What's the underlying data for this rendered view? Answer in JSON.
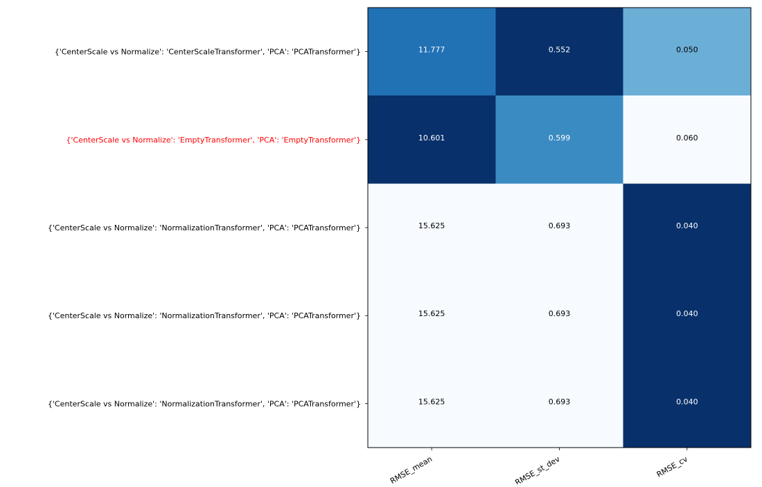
{
  "chart_data": {
    "type": "heatmap",
    "colormap": "Blues",
    "color_scaling": "per-column",
    "columns": [
      "RMSE_mean",
      "RMSE_st_dev",
      "RMSE_cv"
    ],
    "rows": [
      {
        "label": "{'CenterScale vs Normalize': 'CenterScaleTransformer', 'PCA': 'PCATransformer'}",
        "highlight": false
      },
      {
        "label": "{'CenterScale vs Normalize': 'EmptyTransformer', 'PCA': 'EmptyTransformer'}",
        "highlight": true
      },
      {
        "label": "{'CenterScale vs Normalize': 'NormalizationTransformer', 'PCA': 'PCATransformer'}",
        "highlight": false
      },
      {
        "label": "{'CenterScale vs Normalize': 'NormalizationTransformer', 'PCA': 'PCATransformer'}",
        "highlight": false
      },
      {
        "label": "{'CenterScale vs Normalize': 'NormalizationTransformer', 'PCA': 'PCATransformer'}",
        "highlight": false
      }
    ],
    "values": [
      [
        11.777,
        0.552,
        0.05
      ],
      [
        10.601,
        0.599,
        0.06
      ],
      [
        15.625,
        0.693,
        0.04
      ],
      [
        15.625,
        0.693,
        0.04
      ],
      [
        15.625,
        0.693,
        0.04
      ]
    ],
    "cell_labels": [
      [
        "11.777",
        "0.552",
        "0.050"
      ],
      [
        "10.601",
        "0.599",
        "0.060"
      ],
      [
        "15.625",
        "0.693",
        "0.040"
      ],
      [
        "15.625",
        "0.693",
        "0.040"
      ],
      [
        "15.625",
        "0.693",
        "0.040"
      ]
    ],
    "intensity": [
      [
        0.75,
        1.0,
        0.5
      ],
      [
        1.0,
        0.65,
        0.0
      ],
      [
        0.0,
        0.0,
        1.0
      ],
      [
        0.0,
        0.0,
        1.0
      ],
      [
        0.0,
        0.0,
        1.0
      ]
    ],
    "colors": {
      "highlight_label": "#ff0000",
      "normal_label": "#000000",
      "frame": "#000000"
    }
  }
}
